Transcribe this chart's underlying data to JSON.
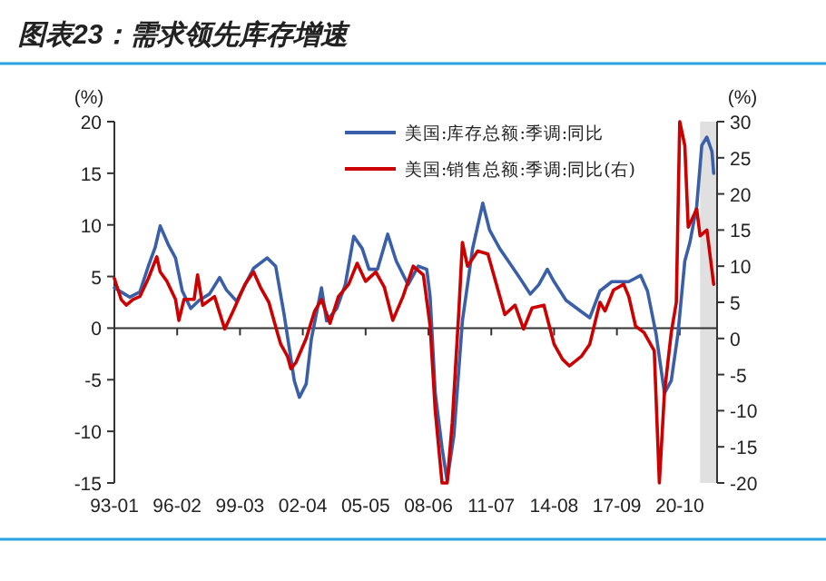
{
  "chart_data": {
    "type": "line",
    "title": "图表23：需求领先库存增速",
    "ylabel": "(%)",
    "y2label": "(%)",
    "legend": "top right",
    "xlim": [
      "1993-01",
      "2022-08"
    ],
    "xticks": [
      {
        "value": "1993-01",
        "label": "93-01"
      },
      {
        "value": "1996-02",
        "label": "96-02"
      },
      {
        "value": "1999-03",
        "label": "99-03"
      },
      {
        "value": "2002-04",
        "label": "02-04"
      },
      {
        "value": "2005-05",
        "label": "05-05"
      },
      {
        "value": "2008-06",
        "label": "08-06"
      },
      {
        "value": "2011-07",
        "label": "11-07"
      },
      {
        "value": "2014-08",
        "label": "14-08"
      },
      {
        "value": "2017-09",
        "label": "17-09"
      },
      {
        "value": "2020-10",
        "label": "20-10"
      }
    ],
    "ylim": [
      -15,
      20
    ],
    "yticks": [
      -15,
      -10,
      -5,
      0,
      5,
      10,
      15,
      20
    ],
    "y2lim": [
      -20,
      30
    ],
    "y2ticks": [
      -20,
      -15,
      -10,
      -5,
      0,
      5,
      10,
      15,
      20,
      25,
      30
    ],
    "bands": [
      {
        "axis": "x",
        "from": "2021-10",
        "to": "2022-08",
        "color": "#e0e0e0"
      }
    ],
    "series": [
      {
        "name": "美国:库存总额:季调:同比",
        "color": "#3a5fa8",
        "x": [
          "1993-01",
          "1993-07",
          "1993-10",
          "1994-04",
          "1994-09",
          "1995-01",
          "1995-04",
          "1995-09",
          "1996-01",
          "1996-05",
          "1996-10",
          "1997-03",
          "1997-09",
          "1998-03",
          "1998-07",
          "1999-01",
          "1999-06",
          "1999-11",
          "2000-07",
          "2000-12",
          "2001-05",
          "2001-11",
          "2002-02",
          "2002-06",
          "2002-09",
          "2003-03",
          "2003-06",
          "2003-12",
          "2004-05",
          "2004-10",
          "2005-03",
          "2005-07",
          "2005-12",
          "2006-06",
          "2006-11",
          "2007-06",
          "2007-12",
          "2008-05",
          "2008-07",
          "2008-10",
          "2009-02",
          "2009-05",
          "2009-09",
          "2010-02",
          "2010-08",
          "2011-02",
          "2011-06",
          "2011-12",
          "2012-05",
          "2012-12",
          "2013-06",
          "2013-11",
          "2014-04",
          "2014-08",
          "2015-03",
          "2015-12",
          "2016-05",
          "2016-11",
          "2017-06",
          "2018-04",
          "2018-11",
          "2019-03",
          "2019-08",
          "2020-01",
          "2020-05",
          "2020-09",
          "2021-01",
          "2021-04",
          "2021-08",
          "2021-11",
          "2022-02",
          "2022-05",
          "2022-06"
        ],
        "values": [
          3.9,
          3.3,
          3.0,
          3.5,
          6.0,
          7.8,
          9.9,
          8.0,
          6.8,
          3.6,
          1.9,
          2.7,
          3.3,
          4.9,
          3.7,
          2.6,
          4.2,
          5.8,
          6.8,
          6.0,
          1.3,
          -5.1,
          -6.7,
          -5.4,
          -1.1,
          3.9,
          0.7,
          1.9,
          4.2,
          8.9,
          7.7,
          5.7,
          5.7,
          9.1,
          6.5,
          4.2,
          6.0,
          5.7,
          3.0,
          -6.3,
          -11.6,
          -14.8,
          -10.4,
          0.7,
          7.7,
          12.1,
          9.5,
          7.7,
          6.5,
          4.8,
          3.3,
          4.2,
          5.7,
          4.5,
          2.7,
          1.6,
          1.0,
          3.6,
          4.5,
          4.5,
          5.1,
          3.6,
          -0.5,
          -6.3,
          -5.1,
          -0.5,
          6.5,
          8.3,
          11.8,
          17.7,
          18.5,
          17.1,
          15.0
        ]
      },
      {
        "name": "美国:销售总额:季调:同比(右)",
        "color": "#cc0000",
        "axis": "y2",
        "x": [
          "1993-01",
          "1993-05",
          "1993-08",
          "1993-12",
          "1994-04",
          "1994-09",
          "1995-02",
          "1995-04",
          "1995-08",
          "1996-01",
          "1996-03",
          "1996-06",
          "1996-12",
          "1997-02",
          "1997-05",
          "1997-12",
          "1998-06",
          "1998-11",
          "1999-06",
          "1999-11",
          "2000-03",
          "2000-08",
          "2001-01",
          "2001-03",
          "2001-07",
          "2001-09",
          "2001-12",
          "2002-06",
          "2002-11",
          "2003-03",
          "2003-08",
          "2004-01",
          "2004-07",
          "2004-12",
          "2005-05",
          "2005-11",
          "2006-04",
          "2006-09",
          "2007-03",
          "2007-09",
          "2008-03",
          "2008-07",
          "2008-10",
          "2009-02",
          "2009-05",
          "2009-08",
          "2009-12",
          "2010-02",
          "2010-05",
          "2010-11",
          "2011-05",
          "2011-10",
          "2012-03",
          "2012-09",
          "2013-02",
          "2013-07",
          "2014-02",
          "2014-08",
          "2015-01",
          "2015-05",
          "2015-12",
          "2016-05",
          "2016-11",
          "2017-02",
          "2017-07",
          "2018-01",
          "2018-04",
          "2018-08",
          "2019-01",
          "2019-07",
          "2019-10",
          "2020-01",
          "2020-05",
          "2020-08",
          "2020-10",
          "2021-01",
          "2021-03",
          "2021-08",
          "2021-10",
          "2022-02",
          "2022-06"
        ],
        "values": [
          8.3,
          5.4,
          4.6,
          5.4,
          5.8,
          8.3,
          11.3,
          9.2,
          7.9,
          5.4,
          2.5,
          5.4,
          5.4,
          8.8,
          4.6,
          5.8,
          1.3,
          3.8,
          7.5,
          9.2,
          7.1,
          5.0,
          0.8,
          -0.8,
          -2.5,
          -4.2,
          -3.3,
          0,
          3.8,
          5.4,
          2.1,
          5.8,
          7.5,
          10.4,
          7.9,
          9.2,
          7.1,
          2.5,
          5.8,
          10.0,
          8.8,
          1.7,
          -10,
          -20,
          -20,
          -11.7,
          4.2,
          13.3,
          10.0,
          12.1,
          11.7,
          7.5,
          3.3,
          4.6,
          1.3,
          4.2,
          4.6,
          -0.8,
          -2.9,
          -3.8,
          -2.5,
          -0.8,
          5.0,
          3.8,
          6.7,
          7.5,
          5.8,
          1.7,
          0.8,
          -1.7,
          -20,
          -7.5,
          0.8,
          5.0,
          30,
          26.7,
          15.4,
          17.9,
          14.2,
          15.0,
          7.5
        ]
      }
    ]
  }
}
